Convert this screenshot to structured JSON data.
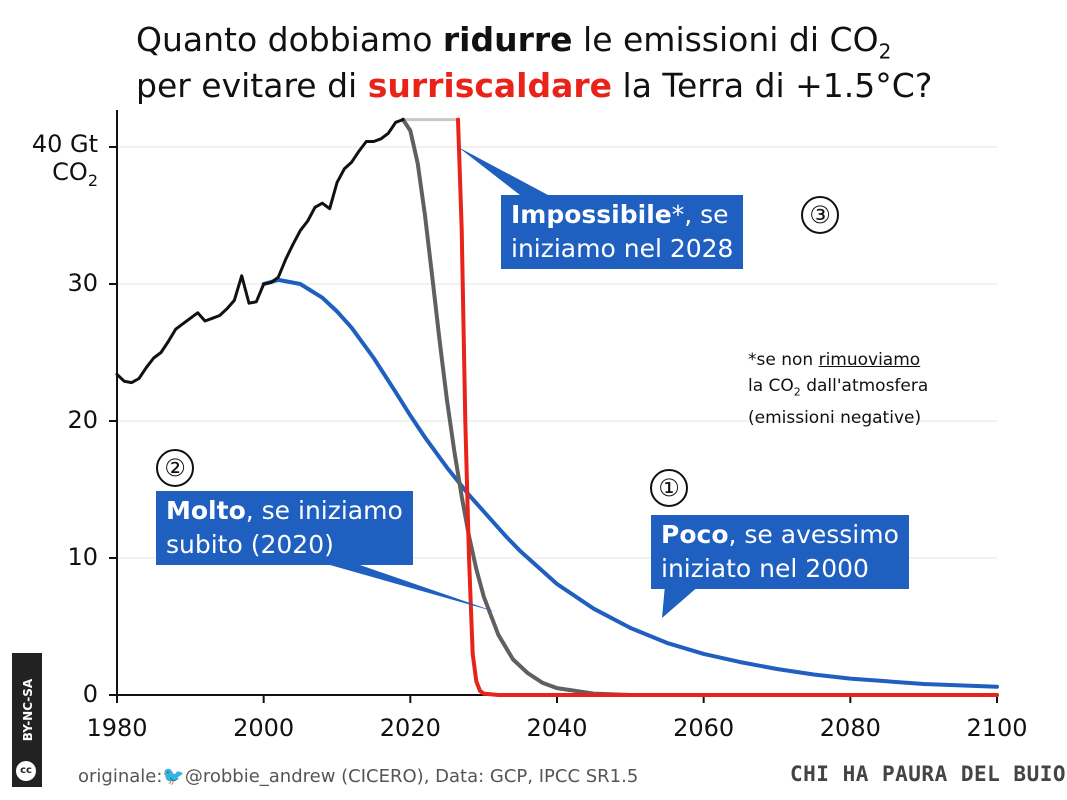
{
  "title": {
    "line1_pre": "Quanto dobbiamo ",
    "line1_bold": "ridurre",
    "line1_post": " le emissioni di CO",
    "line1_sub": "2",
    "line2_pre": "per evitare di ",
    "line2_red": "surriscaldare",
    "line2_post": " la Terra di +1.5°C?"
  },
  "callouts": {
    "impossibile": {
      "bold": "Impossibile",
      "rest": "*, se",
      "line2": "iniziamo nel 2028",
      "badge": "③"
    },
    "molto": {
      "bold": "Molto",
      "rest": ", se iniziamo",
      "line2": "subito (2020)",
      "badge": "②"
    },
    "poco": {
      "bold": "Poco",
      "rest": ", se avessimo",
      "line2": "iniziato nel 2000",
      "badge": "①"
    }
  },
  "note": {
    "line1_pre": "*se non ",
    "line1_u": "rimuoviamo",
    "line2_pre": "la CO",
    "line2_sub": "2",
    "line2_post": " dall'atmosfera",
    "line3": "(emissioni negative)"
  },
  "footer": {
    "source": "originale:🐦@robbie_andrew (CICERO), Data: GCP, IPCC SR1.5",
    "brand": "CHI HA PAURA DEL BUIO?",
    "license_badge": "cc",
    "license_text": "BY-NC-SA"
  },
  "colors": {
    "historical": "#111111",
    "start_2000": "#1f5fbf",
    "start_2020": "#606060",
    "start_2028": "#e8231a",
    "plateau": "#c8c8c8",
    "grid": "#e6e6e6"
  },
  "chart_data": {
    "type": "line",
    "xlim": [
      1980,
      2100
    ],
    "ylim": [
      0,
      42
    ],
    "ylabel_top_line1": "40 Gt",
    "ylabel_top_line2": "CO",
    "ylabel_top_sub": "2",
    "x_ticks": [
      1980,
      2000,
      2020,
      2040,
      2060,
      2080,
      2100
    ],
    "y_ticks": [
      0,
      10,
      20,
      30,
      40
    ],
    "y_tick_labels": [
      "0",
      "10",
      "20",
      "30",
      ""
    ],
    "grid": true,
    "legend": "none",
    "series": [
      {
        "key": "historical",
        "x": [
          1980,
          1981,
          1982,
          1983,
          1984,
          1985,
          1986,
          1987,
          1988,
          1989,
          1990,
          1991,
          1992,
          1993,
          1994,
          1995,
          1996,
          1997,
          1998,
          1999,
          2000,
          2001,
          2002,
          2003,
          2004,
          2005,
          2006,
          2007,
          2008,
          2009,
          2010,
          2011,
          2012,
          2013,
          2014,
          2015,
          2016,
          2017,
          2018,
          2019
        ],
        "values": [
          23.4,
          22.9,
          22.8,
          23.1,
          23.9,
          24.6,
          25.0,
          25.8,
          26.7,
          27.1,
          27.5,
          27.9,
          27.3,
          27.5,
          27.7,
          28.2,
          28.8,
          30.6,
          28.6,
          28.7,
          30.0,
          30.1,
          30.5,
          31.8,
          32.9,
          33.9,
          34.6,
          35.6,
          35.9,
          35.5,
          37.4,
          38.4,
          38.9,
          39.7,
          40.4,
          40.4,
          40.6,
          41.0,
          41.8,
          42.0
        ]
      },
      {
        "key": "start_2000",
        "x": [
          2000,
          2002,
          2005,
          2008,
          2010,
          2012,
          2015,
          2018,
          2020,
          2022,
          2025,
          2028,
          2030,
          2033,
          2035,
          2040,
          2045,
          2050,
          2055,
          2060,
          2065,
          2070,
          2075,
          2080,
          2085,
          2090,
          2095,
          2100
        ],
        "values": [
          30.0,
          30.3,
          30.0,
          29.0,
          28.0,
          26.8,
          24.6,
          22.1,
          20.4,
          18.8,
          16.6,
          14.6,
          13.4,
          11.6,
          10.5,
          8.1,
          6.3,
          4.9,
          3.8,
          3.0,
          2.4,
          1.9,
          1.5,
          1.2,
          1.0,
          0.8,
          0.7,
          0.6
        ]
      },
      {
        "key": "start_2020",
        "x": [
          2019,
          2020,
          2021,
          2022,
          2023,
          2024,
          2025,
          2026,
          2027,
          2028,
          2029,
          2030,
          2032,
          2034,
          2036,
          2038,
          2040,
          2045,
          2050,
          2060,
          2100
        ],
        "values": [
          42.0,
          41.2,
          38.8,
          35.0,
          30.5,
          25.8,
          21.5,
          17.8,
          14.5,
          11.6,
          9.2,
          7.2,
          4.4,
          2.6,
          1.6,
          0.9,
          0.5,
          0.1,
          0.0,
          0.0,
          0.0
        ]
      },
      {
        "key": "start_2028",
        "x": [
          2026.5,
          2027,
          2027.5,
          2028,
          2028.5,
          2029,
          2029.5,
          2030,
          2032,
          2040,
          2100
        ],
        "values": [
          42.0,
          34.0,
          20.0,
          10.0,
          3.0,
          1.0,
          0.3,
          0.1,
          0.0,
          0.0,
          0.0
        ]
      },
      {
        "key": "plateau",
        "x": [
          2019,
          2026.5
        ],
        "values": [
          42.0,
          42.0
        ]
      }
    ]
  }
}
